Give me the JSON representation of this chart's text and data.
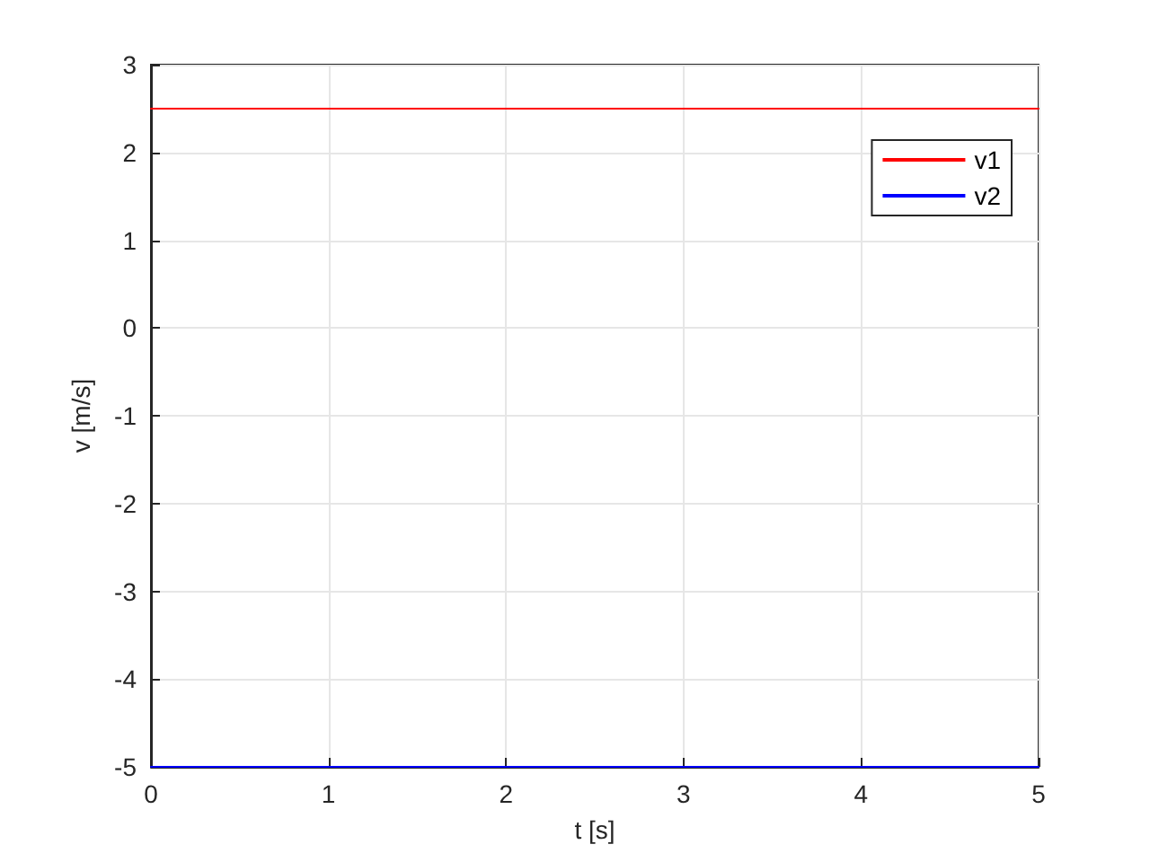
{
  "chart_data": {
    "type": "line",
    "xlabel": "t [s]",
    "ylabel": "v [m/s]",
    "x": [
      0,
      5
    ],
    "series": [
      {
        "name": "v1",
        "color": "#ff0000",
        "values": [
          2.5,
          2.5
        ]
      },
      {
        "name": "v2",
        "color": "#0000ff",
        "values": [
          -5,
          -5
        ]
      }
    ],
    "xlim": [
      0,
      5
    ],
    "ylim": [
      -5,
      3
    ],
    "xticks": [
      0,
      1,
      2,
      3,
      4,
      5
    ],
    "yticks": [
      -5,
      -4,
      -3,
      -2,
      -1,
      0,
      1,
      2,
      3
    ],
    "grid": true,
    "legend": "top right"
  }
}
